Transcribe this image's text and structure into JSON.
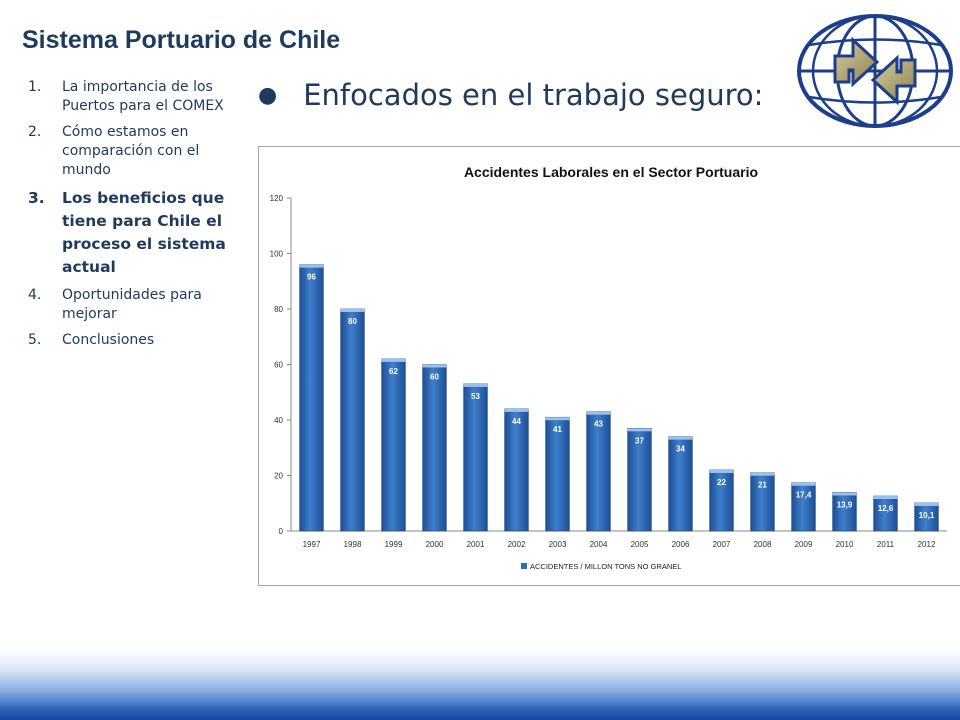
{
  "slide": {
    "title": "Sistema Portuario de Chile",
    "bullet": "Enfocados en el trabajo seguro:"
  },
  "agenda": [
    {
      "num": "1.",
      "text": "La importancia de los Puertos para el COMEX",
      "active": false
    },
    {
      "num": "2.",
      "text": "Cómo estamos en comparación con el mundo",
      "active": false
    },
    {
      "num": "3.",
      "text": "Los beneficios que tiene para Chile el proceso el sistema actual",
      "active": true
    },
    {
      "num": "4.",
      "text": "Oportunidades para mejorar",
      "active": false
    },
    {
      "num": "5.",
      "text": "Conclusiones",
      "active": false
    }
  ],
  "colors": {
    "title": "#1f3a5c",
    "bar": "#2e6cb8",
    "bar_dark": "#1d4f95",
    "footer": "#15439a"
  },
  "icons": {
    "logo": "globe-arrows-logo"
  },
  "chart_data": {
    "type": "bar",
    "title": "Accidentes Laborales en el Sector Portuario",
    "categories": [
      "1997",
      "1998",
      "1999",
      "2000",
      "2001",
      "2002",
      "2003",
      "2004",
      "2005",
      "2006",
      "2007",
      "2008",
      "2009",
      "2010",
      "2011",
      "2012"
    ],
    "series": [
      {
        "name": "ACCIDENTES / MILLON TONS NO GRANEL",
        "values": [
          96,
          80,
          62,
          60,
          53,
          44,
          41,
          43,
          37,
          34,
          22,
          21,
          17.4,
          13.9,
          12.6,
          10.1
        ],
        "labels": [
          "96",
          "80",
          "62",
          "60",
          "53",
          "44",
          "41",
          "43",
          "37",
          "34",
          "22",
          "21",
          "17,4",
          "13,9",
          "12,6",
          "10,1"
        ]
      }
    ],
    "yticks": [
      "0",
      "20",
      "40",
      "60",
      "80",
      "100",
      "120"
    ],
    "ylim": [
      0,
      120
    ],
    "grid": false,
    "legend": "bottom"
  }
}
